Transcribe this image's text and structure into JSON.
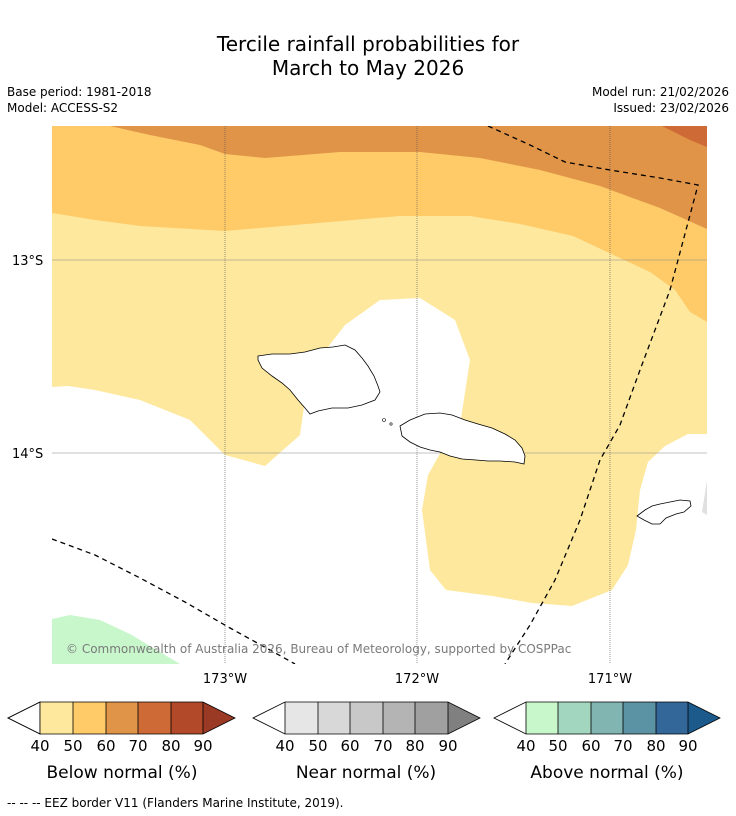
{
  "title": {
    "line1": "Tercile rainfall probabilities for",
    "line2": "March to May 2026"
  },
  "info": {
    "base_period": "Base period: 1981-2018",
    "model": "Model: ACCESS-S2",
    "model_run": "Model run: 21/02/2026",
    "issued": "Issued: 23/02/2026"
  },
  "map": {
    "lat_labels": [
      "13°S",
      "14°S"
    ],
    "lon_labels": [
      "173°W",
      "172°W",
      "171°W"
    ],
    "copyright": "© Commonwealth of Australia 2026, Bureau of Meteorology, supported by COSPPac",
    "colors": {
      "below_40": "#fee89e",
      "below_50": "#fecb68",
      "below_60": "#e09448",
      "below_70": "#cd6a35"
    }
  },
  "legends": [
    {
      "title": "Below normal (%)",
      "ticks": [
        "40",
        "50",
        "60",
        "70",
        "80",
        "90"
      ],
      "colors": [
        "#fee89e",
        "#fecb68",
        "#e09448",
        "#cd6a35",
        "#b24a2a",
        "#9a3a24"
      ]
    },
    {
      "title": "Near normal (%)",
      "ticks": [
        "40",
        "50",
        "60",
        "70",
        "80",
        "90"
      ],
      "colors": [
        "#e6e6e6",
        "#d8d8d8",
        "#c8c8c8",
        "#b4b4b4",
        "#a0a0a0",
        "#808080"
      ]
    },
    {
      "title": "Above normal (%)",
      "ticks": [
        "40",
        "50",
        "60",
        "70",
        "80",
        "90"
      ],
      "colors": [
        "#c8f7cb",
        "#a3d6bf",
        "#80b5b2",
        "#5c93a4",
        "#336699",
        "#1c5a8c"
      ]
    }
  ],
  "footnote": "--  --  -- EEZ border V11 (Flanders Marine Institute, 2019)."
}
